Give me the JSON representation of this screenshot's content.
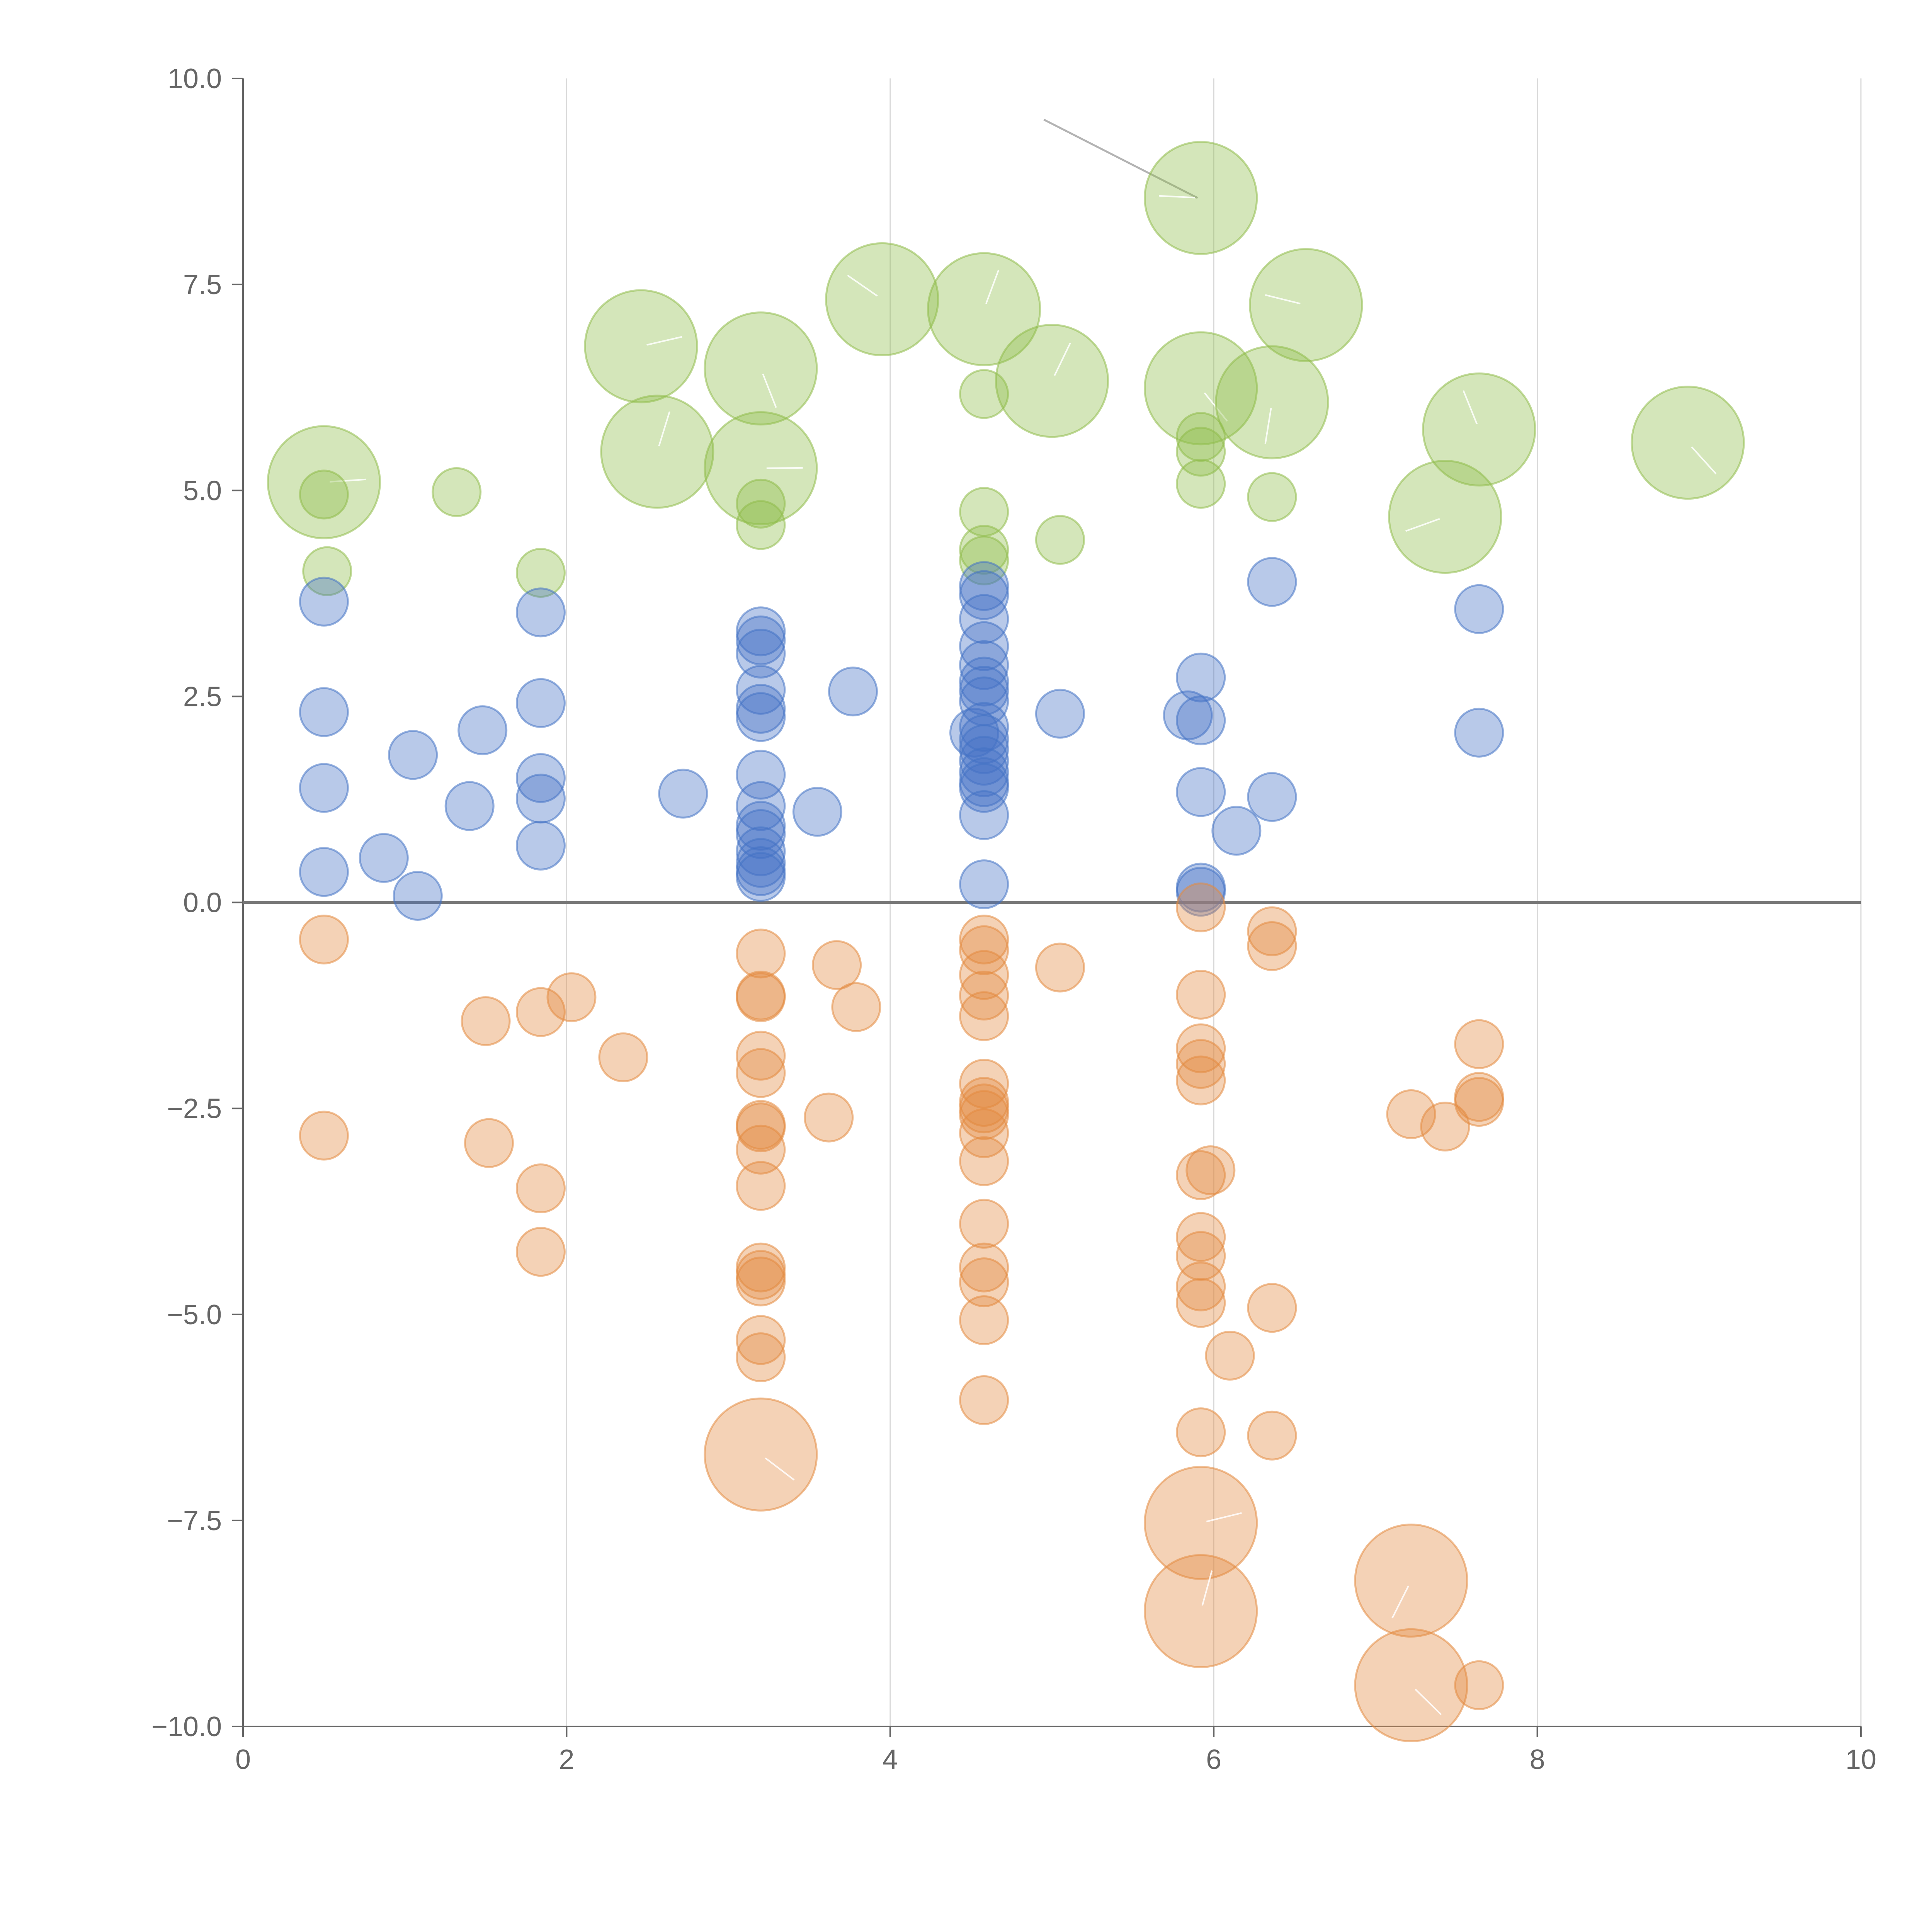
{
  "colors": {
    "positive": "#4472c4",
    "negative": "#e38a3f",
    "highlight": "#8fbc4a",
    "axis": "#666666",
    "grid": "#d9d9d9"
  },
  "chart_data": {
    "type": "scatter",
    "title": "",
    "xlabel": "",
    "ylabel": "",
    "xlim": [
      0,
      10
    ],
    "ylim": [
      -10,
      10
    ],
    "x_ticks": [
      0,
      2,
      4,
      6,
      8,
      10
    ],
    "x_tick_labels": [
      "0",
      "2",
      "4",
      "6",
      "8",
      "10"
    ],
    "y_ticks": [
      10,
      7.5,
      5,
      2.5,
      0,
      -2.5,
      -5,
      -7.5,
      -10
    ],
    "y_tick_labels": [
      "10.0",
      "7.5",
      "5.0",
      "2.5",
      "0.0",
      "−2.5",
      "−5.0",
      "−7.5",
      "−10.0"
    ],
    "grid": "vertical",
    "reference_line_y": 0,
    "annotation_line": [
      [
        4.95,
        9.5
      ],
      [
        5.9,
        8.55
      ]
    ],
    "series": [
      {
        "name": "green",
        "color_key": "highlight",
        "points": [
          {
            "x": 0.5,
            "y": 5.1,
            "s": 4
          },
          {
            "x": 0.5,
            "y": 4.95,
            "s": 1
          },
          {
            "x": 0.52,
            "y": 4.02,
            "s": 1
          },
          {
            "x": 1.32,
            "y": 4.98,
            "s": 1
          },
          {
            "x": 1.84,
            "y": 4.0,
            "s": 1
          },
          {
            "x": 2.46,
            "y": 6.75,
            "s": 4
          },
          {
            "x": 2.56,
            "y": 5.47,
            "s": 4
          },
          {
            "x": 3.2,
            "y": 6.48,
            "s": 4
          },
          {
            "x": 3.2,
            "y": 5.27,
            "s": 4
          },
          {
            "x": 3.2,
            "y": 4.84,
            "s": 1
          },
          {
            "x": 3.2,
            "y": 4.58,
            "s": 1
          },
          {
            "x": 3.95,
            "y": 7.32,
            "s": 4
          },
          {
            "x": 4.58,
            "y": 7.2,
            "s": 4
          },
          {
            "x": 4.58,
            "y": 6.17,
            "s": 1
          },
          {
            "x": 4.58,
            "y": 4.74,
            "s": 1
          },
          {
            "x": 4.58,
            "y": 4.28,
            "s": 1
          },
          {
            "x": 4.58,
            "y": 4.15,
            "s": 1
          },
          {
            "x": 5.0,
            "y": 6.33,
            "s": 4
          },
          {
            "x": 5.05,
            "y": 4.4,
            "s": 1
          },
          {
            "x": 5.92,
            "y": 8.55,
            "s": 4
          },
          {
            "x": 5.92,
            "y": 6.24,
            "s": 4
          },
          {
            "x": 5.92,
            "y": 5.65,
            "s": 1
          },
          {
            "x": 5.92,
            "y": 5.47,
            "s": 1
          },
          {
            "x": 5.92,
            "y": 5.08,
            "s": 1
          },
          {
            "x": 6.36,
            "y": 6.07,
            "s": 4
          },
          {
            "x": 6.36,
            "y": 4.92,
            "s": 1
          },
          {
            "x": 6.57,
            "y": 7.25,
            "s": 4
          },
          {
            "x": 7.43,
            "y": 4.68,
            "s": 4
          },
          {
            "x": 7.64,
            "y": 5.74,
            "s": 4
          },
          {
            "x": 8.93,
            "y": 5.58,
            "s": 4
          }
        ]
      },
      {
        "name": "blue",
        "color_key": "positive",
        "points": [
          {
            "x": 0.5,
            "y": 3.65,
            "s": 1
          },
          {
            "x": 0.5,
            "y": 2.31,
            "s": 1
          },
          {
            "x": 0.5,
            "y": 1.39,
            "s": 1
          },
          {
            "x": 0.5,
            "y": 0.37,
            "s": 1
          },
          {
            "x": 0.87,
            "y": 0.54,
            "s": 1
          },
          {
            "x": 1.05,
            "y": 1.79,
            "s": 1
          },
          {
            "x": 1.08,
            "y": 0.08,
            "s": 1
          },
          {
            "x": 1.4,
            "y": 1.17,
            "s": 1
          },
          {
            "x": 1.48,
            "y": 2.09,
            "s": 1
          },
          {
            "x": 1.84,
            "y": 3.52,
            "s": 1
          },
          {
            "x": 1.84,
            "y": 2.42,
            "s": 1
          },
          {
            "x": 1.84,
            "y": 1.51,
            "s": 1
          },
          {
            "x": 1.84,
            "y": 1.26,
            "s": 1
          },
          {
            "x": 1.84,
            "y": 0.69,
            "s": 1
          },
          {
            "x": 2.72,
            "y": 1.32,
            "s": 1
          },
          {
            "x": 3.2,
            "y": 3.29,
            "s": 1
          },
          {
            "x": 3.2,
            "y": 3.18,
            "s": 1
          },
          {
            "x": 3.2,
            "y": 3.02,
            "s": 1
          },
          {
            "x": 3.2,
            "y": 2.58,
            "s": 1
          },
          {
            "x": 3.2,
            "y": 2.35,
            "s": 1
          },
          {
            "x": 3.2,
            "y": 2.25,
            "s": 1
          },
          {
            "x": 3.2,
            "y": 1.55,
            "s": 1
          },
          {
            "x": 3.2,
            "y": 1.17,
            "s": 1
          },
          {
            "x": 3.2,
            "y": 0.93,
            "s": 1
          },
          {
            "x": 3.2,
            "y": 0.83,
            "s": 1
          },
          {
            "x": 3.2,
            "y": 0.62,
            "s": 1
          },
          {
            "x": 3.2,
            "y": 0.48,
            "s": 1
          },
          {
            "x": 3.2,
            "y": 0.38,
            "s": 1
          },
          {
            "x": 3.2,
            "y": 0.31,
            "s": 1
          },
          {
            "x": 3.55,
            "y": 1.1,
            "s": 1
          },
          {
            "x": 3.77,
            "y": 2.56,
            "s": 1
          },
          {
            "x": 4.52,
            "y": 2.06,
            "s": 1
          },
          {
            "x": 4.58,
            "y": 3.84,
            "s": 1
          },
          {
            "x": 4.58,
            "y": 3.73,
            "s": 1
          },
          {
            "x": 4.58,
            "y": 3.44,
            "s": 1
          },
          {
            "x": 4.58,
            "y": 3.11,
            "s": 1
          },
          {
            "x": 4.58,
            "y": 2.88,
            "s": 1
          },
          {
            "x": 4.58,
            "y": 2.68,
            "s": 1
          },
          {
            "x": 4.58,
            "y": 2.57,
            "s": 1
          },
          {
            "x": 4.58,
            "y": 2.44,
            "s": 1
          },
          {
            "x": 4.58,
            "y": 2.13,
            "s": 1
          },
          {
            "x": 4.58,
            "y": 1.98,
            "s": 1
          },
          {
            "x": 4.58,
            "y": 1.86,
            "s": 1
          },
          {
            "x": 4.58,
            "y": 1.72,
            "s": 1
          },
          {
            "x": 4.58,
            "y": 1.58,
            "s": 1
          },
          {
            "x": 4.58,
            "y": 1.46,
            "s": 1
          },
          {
            "x": 4.58,
            "y": 1.39,
            "s": 1
          },
          {
            "x": 4.58,
            "y": 1.06,
            "s": 1
          },
          {
            "x": 4.58,
            "y": 0.22,
            "s": 1
          },
          {
            "x": 5.05,
            "y": 2.29,
            "s": 1
          },
          {
            "x": 5.84,
            "y": 2.27,
            "s": 1
          },
          {
            "x": 5.92,
            "y": 2.73,
            "s": 1
          },
          {
            "x": 5.92,
            "y": 2.21,
            "s": 1
          },
          {
            "x": 5.92,
            "y": 1.34,
            "s": 1
          },
          {
            "x": 5.92,
            "y": 0.18,
            "s": 1
          },
          {
            "x": 5.92,
            "y": 0.13,
            "s": 1
          },
          {
            "x": 6.14,
            "y": 0.87,
            "s": 1
          },
          {
            "x": 6.36,
            "y": 3.89,
            "s": 1
          },
          {
            "x": 6.36,
            "y": 1.28,
            "s": 1
          },
          {
            "x": 7.64,
            "y": 3.56,
            "s": 1
          },
          {
            "x": 7.64,
            "y": 2.06,
            "s": 1
          }
        ]
      },
      {
        "name": "orange",
        "color_key": "negative",
        "points": [
          {
            "x": 0.5,
            "y": -0.45,
            "s": 1
          },
          {
            "x": 0.5,
            "y": -2.83,
            "s": 1
          },
          {
            "x": 1.5,
            "y": -1.44,
            "s": 1
          },
          {
            "x": 1.52,
            "y": -2.92,
            "s": 1
          },
          {
            "x": 1.84,
            "y": -1.33,
            "s": 1
          },
          {
            "x": 1.84,
            "y": -3.47,
            "s": 1
          },
          {
            "x": 1.84,
            "y": -4.24,
            "s": 1
          },
          {
            "x": 2.03,
            "y": -1.15,
            "s": 1
          },
          {
            "x": 2.35,
            "y": -1.88,
            "s": 1
          },
          {
            "x": 3.2,
            "y": -0.62,
            "s": 1
          },
          {
            "x": 3.2,
            "y": -1.13,
            "s": 1
          },
          {
            "x": 3.2,
            "y": -1.15,
            "s": 1
          },
          {
            "x": 3.2,
            "y": -1.86,
            "s": 1
          },
          {
            "x": 3.2,
            "y": -2.07,
            "s": 1
          },
          {
            "x": 3.2,
            "y": -2.7,
            "s": 1
          },
          {
            "x": 3.2,
            "y": -2.73,
            "s": 1
          },
          {
            "x": 3.2,
            "y": -3.0,
            "s": 1
          },
          {
            "x": 3.2,
            "y": -3.44,
            "s": 1
          },
          {
            "x": 3.2,
            "y": -4.43,
            "s": 1
          },
          {
            "x": 3.2,
            "y": -4.52,
            "s": 1
          },
          {
            "x": 3.2,
            "y": -4.6,
            "s": 1
          },
          {
            "x": 3.2,
            "y": -5.31,
            "s": 1
          },
          {
            "x": 3.2,
            "y": -5.52,
            "s": 1
          },
          {
            "x": 3.2,
            "y": -6.7,
            "s": 4
          },
          {
            "x": 3.62,
            "y": -2.61,
            "s": 1
          },
          {
            "x": 3.67,
            "y": -0.76,
            "s": 1
          },
          {
            "x": 3.79,
            "y": -1.27,
            "s": 1
          },
          {
            "x": 4.58,
            "y": -0.45,
            "s": 1
          },
          {
            "x": 4.58,
            "y": -0.58,
            "s": 1
          },
          {
            "x": 4.58,
            "y": -0.88,
            "s": 1
          },
          {
            "x": 4.58,
            "y": -1.13,
            "s": 1
          },
          {
            "x": 4.58,
            "y": -1.38,
            "s": 1
          },
          {
            "x": 4.58,
            "y": -2.2,
            "s": 1
          },
          {
            "x": 4.58,
            "y": -2.42,
            "s": 1
          },
          {
            "x": 4.58,
            "y": -2.5,
            "s": 1
          },
          {
            "x": 4.58,
            "y": -2.58,
            "s": 1
          },
          {
            "x": 4.58,
            "y": -2.8,
            "s": 1
          },
          {
            "x": 4.58,
            "y": -3.14,
            "s": 1
          },
          {
            "x": 4.58,
            "y": -3.9,
            "s": 1
          },
          {
            "x": 4.58,
            "y": -4.43,
            "s": 1
          },
          {
            "x": 4.58,
            "y": -4.61,
            "s": 1
          },
          {
            "x": 4.58,
            "y": -5.07,
            "s": 1
          },
          {
            "x": 4.58,
            "y": -6.04,
            "s": 1
          },
          {
            "x": 5.05,
            "y": -0.79,
            "s": 1
          },
          {
            "x": 5.92,
            "y": -0.06,
            "s": 1
          },
          {
            "x": 5.92,
            "y": -1.12,
            "s": 1
          },
          {
            "x": 5.92,
            "y": -1.77,
            "s": 1
          },
          {
            "x": 5.92,
            "y": -1.96,
            "s": 1
          },
          {
            "x": 5.92,
            "y": -2.16,
            "s": 1
          },
          {
            "x": 5.92,
            "y": -3.31,
            "s": 1
          },
          {
            "x": 5.92,
            "y": -4.06,
            "s": 1
          },
          {
            "x": 5.92,
            "y": -4.29,
            "s": 1
          },
          {
            "x": 5.92,
            "y": -4.66,
            "s": 1
          },
          {
            "x": 5.92,
            "y": -4.86,
            "s": 1
          },
          {
            "x": 5.92,
            "y": -6.43,
            "s": 1
          },
          {
            "x": 5.92,
            "y": -7.53,
            "s": 4
          },
          {
            "x": 5.92,
            "y": -8.6,
            "s": 4
          },
          {
            "x": 5.98,
            "y": -3.25,
            "s": 1
          },
          {
            "x": 6.1,
            "y": -5.5,
            "s": 1
          },
          {
            "x": 6.36,
            "y": -0.35,
            "s": 1
          },
          {
            "x": 6.36,
            "y": -0.53,
            "s": 1
          },
          {
            "x": 6.36,
            "y": -4.92,
            "s": 1
          },
          {
            "x": 6.36,
            "y": -6.47,
            "s": 1
          },
          {
            "x": 7.22,
            "y": -2.57,
            "s": 1
          },
          {
            "x": 7.22,
            "y": -8.23,
            "s": 4
          },
          {
            "x": 7.22,
            "y": -9.5,
            "s": 4
          },
          {
            "x": 7.43,
            "y": -2.72,
            "s": 1
          },
          {
            "x": 7.64,
            "y": -1.72,
            "s": 1
          },
          {
            "x": 7.64,
            "y": -2.36,
            "s": 1
          },
          {
            "x": 7.64,
            "y": -2.42,
            "s": 1
          },
          {
            "x": 7.64,
            "y": -9.5,
            "s": 1
          }
        ]
      }
    ]
  }
}
